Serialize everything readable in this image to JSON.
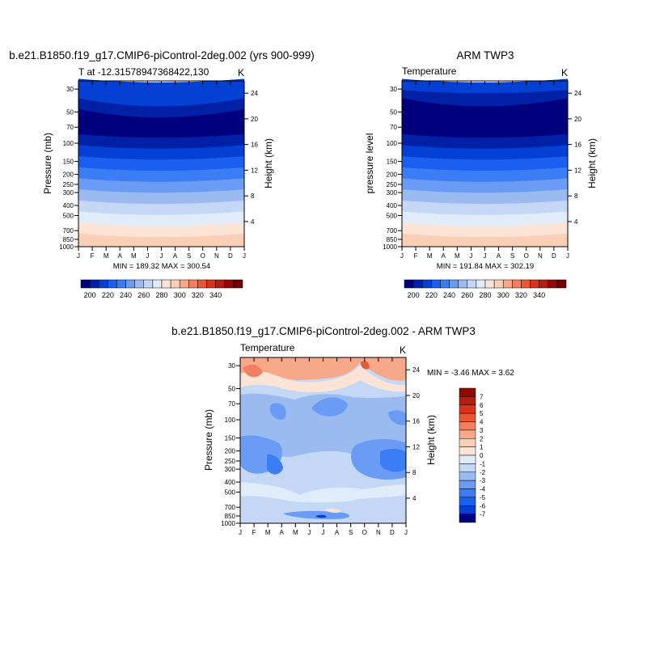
{
  "chart_data": [
    {
      "type": "contour",
      "title": "b.e21.B1850.f19_g17.CMIP6-piControl-2deg.002 (yrs 900-999)",
      "left_label": "T at -12.31578947368422,130",
      "right_label": "K",
      "ylabel": "Pressure (mb)",
      "ylabel_right": "Height (km)",
      "min_max": "MIN = 189.32 MAX = 300.54",
      "months": [
        "J",
        "F",
        "M",
        "A",
        "M",
        "J",
        "J",
        "A",
        "S",
        "O",
        "N",
        "D",
        "J"
      ],
      "pressure_ticks": [
        "30",
        "50",
        "70",
        "100",
        "150",
        "200",
        "250",
        "300",
        "400",
        "500",
        "700",
        "850",
        "1000"
      ],
      "height_ticks": [
        "24",
        "20",
        "16",
        "12",
        "8",
        "4"
      ],
      "colorbar_labels": [
        "200",
        "220",
        "240",
        "260",
        "280",
        "300",
        "320",
        "340"
      ],
      "bands_top_to_bottom": [
        -5,
        -5,
        -6,
        -7,
        -7,
        -6,
        -5,
        -4,
        -3,
        -2,
        -1,
        1,
        2,
        3,
        4
      ]
    },
    {
      "type": "contour",
      "title": "ARM TWP3",
      "left_label": "Temperature",
      "right_label": "K",
      "ylabel": "pressure level",
      "ylabel_right": "Height (km)",
      "min_max": "MIN = 191.84 MAX = 302.19",
      "months": [
        "J",
        "F",
        "M",
        "A",
        "M",
        "J",
        "J",
        "A",
        "S",
        "O",
        "N",
        "D",
        "J"
      ],
      "pressure_ticks": [
        "30",
        "50",
        "70",
        "100",
        "150",
        "200",
        "250",
        "300",
        "400",
        "500",
        "700",
        "850",
        "1000"
      ],
      "height_ticks": [
        "24",
        "20",
        "16",
        "12",
        "8",
        "4"
      ],
      "colorbar_labels": [
        "200",
        "220",
        "240",
        "260",
        "280",
        "300",
        "320",
        "340"
      ],
      "bands_top_to_bottom": [
        -5,
        -6,
        -7,
        -7,
        -7,
        -6,
        -5,
        -4,
        -3,
        -2,
        -1,
        1,
        2,
        3,
        4
      ]
    },
    {
      "type": "contour",
      "title": "b.e21.B1850.f19_g17.CMIP6-piControl-2deg.002 - ARM TWP3",
      "left_label": "Temperature",
      "right_label": "K",
      "ylabel": "Pressure (mb)",
      "ylabel_right": "Height (km)",
      "min_max": "MIN =  -3.46 MAX =   3.62",
      "months": [
        "J",
        "F",
        "M",
        "A",
        "M",
        "J",
        "J",
        "A",
        "S",
        "O",
        "N",
        "D",
        "J"
      ],
      "pressure_ticks": [
        "30",
        "50",
        "70",
        "100",
        "150",
        "200",
        "250",
        "300",
        "400",
        "500",
        "700",
        "850",
        "1000"
      ],
      "height_ticks": [
        "24",
        "20",
        "16",
        "12",
        "8",
        "4"
      ],
      "colorbar_labels": [
        "7",
        "6",
        "5",
        "4",
        "3",
        "2",
        "1",
        "0",
        "-1",
        "-2",
        "-3",
        "-4",
        "-5",
        "-6",
        "-7"
      ]
    }
  ],
  "colors": {
    "palette": [
      "#00007f",
      "#0021a6",
      "#0540d4",
      "#1a5ff0",
      "#3a7df5",
      "#6a9cf5",
      "#9bbaf0",
      "#c4d8f5",
      "#e0ecfa",
      "#fbe4d6",
      "#fbcfb6",
      "#f7a888",
      "#f28060",
      "#ea5733",
      "#d9341a",
      "#b51d0c",
      "#8f0a05",
      "#6e0000"
    ],
    "diff_bg": "#c4d8f5"
  }
}
